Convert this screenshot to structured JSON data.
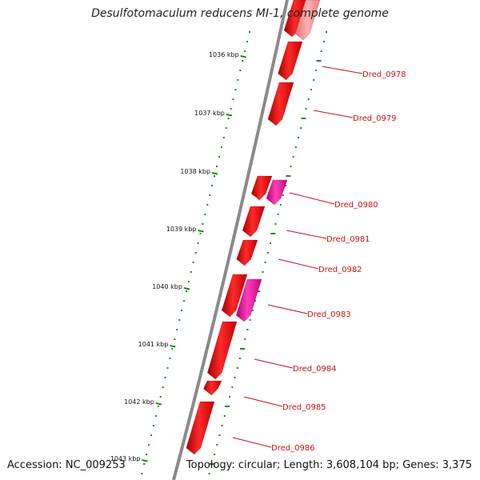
{
  "header": {
    "title": "Desulfotomaculum reducens MI-1, complete genome"
  },
  "footer": {
    "accession": "Accession: NC_009253",
    "topology": "Topology: circular; Length: 3,608,104 bp; Genes: 3,375"
  },
  "colors": {
    "backbone": "#8a8a8a",
    "gene_red": "#ee0000",
    "gene_pink": "#ff1aa8",
    "gene_faded": "#f59a9a",
    "tick_green": "#1d8a1d",
    "label_red": "#cc1111"
  },
  "scale": {
    "labels": [
      "1036 kbp",
      "1037 kbp",
      "1038 kbp",
      "1039 kbp",
      "1040 kbp",
      "1041 kbp",
      "1042 kbp",
      "1043 kbp"
    ]
  },
  "genes": [
    {
      "name": "Dred_0978"
    },
    {
      "name": "Dred_0979"
    },
    {
      "name": "Dred_0980"
    },
    {
      "name": "Dred_0981"
    },
    {
      "name": "Dred_0982"
    },
    {
      "name": "Dred_0983"
    },
    {
      "name": "Dred_0984"
    },
    {
      "name": "Dred_0985"
    },
    {
      "name": "Dred_0986"
    }
  ]
}
